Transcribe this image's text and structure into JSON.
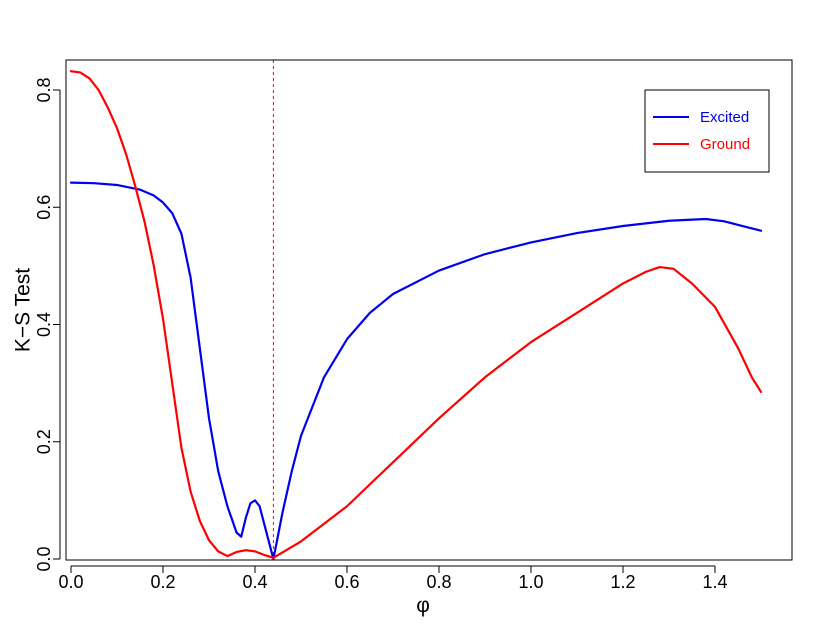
{
  "chart_data": {
    "type": "line",
    "title": "",
    "xlabel": "φ",
    "ylabel": "K−S Test",
    "xlim": [
      0,
      1.5
    ],
    "ylim": [
      0,
      0.85
    ],
    "x_ticks": [
      0.0,
      0.2,
      0.4,
      0.6,
      0.8,
      1.0,
      1.2,
      1.4
    ],
    "x_tick_labels": [
      "0.0",
      "0.2",
      "0.4",
      "0.6",
      "0.8",
      "1.0",
      "1.2",
      "1.4"
    ],
    "y_ticks": [
      0.0,
      0.2,
      0.4,
      0.6,
      0.8
    ],
    "y_tick_labels": [
      "0.0",
      "0.2",
      "0.4",
      "0.6",
      "0.8"
    ],
    "grid": false,
    "legend_position": "top-right",
    "reference_line": {
      "x": 0.44,
      "color": "#ff0000",
      "style": "dashed"
    },
    "series": [
      {
        "name": "Excited",
        "color": "#0000ee",
        "x": [
          0.0,
          0.05,
          0.1,
          0.15,
          0.18,
          0.2,
          0.22,
          0.24,
          0.26,
          0.28,
          0.3,
          0.32,
          0.34,
          0.36,
          0.37,
          0.38,
          0.39,
          0.4,
          0.41,
          0.42,
          0.43,
          0.44,
          0.46,
          0.48,
          0.5,
          0.55,
          0.6,
          0.65,
          0.7,
          0.8,
          0.9,
          1.0,
          1.1,
          1.2,
          1.3,
          1.38,
          1.42,
          1.46,
          1.5
        ],
        "y": [
          0.642,
          0.641,
          0.638,
          0.63,
          0.62,
          0.608,
          0.59,
          0.555,
          0.48,
          0.36,
          0.24,
          0.15,
          0.09,
          0.045,
          0.038,
          0.07,
          0.095,
          0.1,
          0.09,
          0.06,
          0.03,
          0.0,
          0.08,
          0.15,
          0.21,
          0.31,
          0.375,
          0.42,
          0.452,
          0.492,
          0.52,
          0.54,
          0.556,
          0.568,
          0.577,
          0.58,
          0.576,
          0.568,
          0.56
        ]
      },
      {
        "name": "Ground",
        "color": "#ff0000",
        "x": [
          0.0,
          0.02,
          0.04,
          0.06,
          0.08,
          0.1,
          0.12,
          0.14,
          0.16,
          0.18,
          0.2,
          0.22,
          0.24,
          0.26,
          0.28,
          0.3,
          0.32,
          0.34,
          0.36,
          0.38,
          0.4,
          0.42,
          0.44,
          0.5,
          0.6,
          0.7,
          0.8,
          0.9,
          1.0,
          1.1,
          1.2,
          1.25,
          1.28,
          1.31,
          1.35,
          1.4,
          1.45,
          1.48,
          1.5
        ],
        "y": [
          0.832,
          0.83,
          0.82,
          0.8,
          0.77,
          0.735,
          0.69,
          0.635,
          0.575,
          0.5,
          0.41,
          0.3,
          0.19,
          0.115,
          0.065,
          0.032,
          0.013,
          0.005,
          0.012,
          0.015,
          0.013,
          0.007,
          0.002,
          0.03,
          0.09,
          0.165,
          0.24,
          0.31,
          0.37,
          0.42,
          0.47,
          0.49,
          0.498,
          0.495,
          0.47,
          0.43,
          0.36,
          0.31,
          0.285
        ]
      }
    ]
  }
}
